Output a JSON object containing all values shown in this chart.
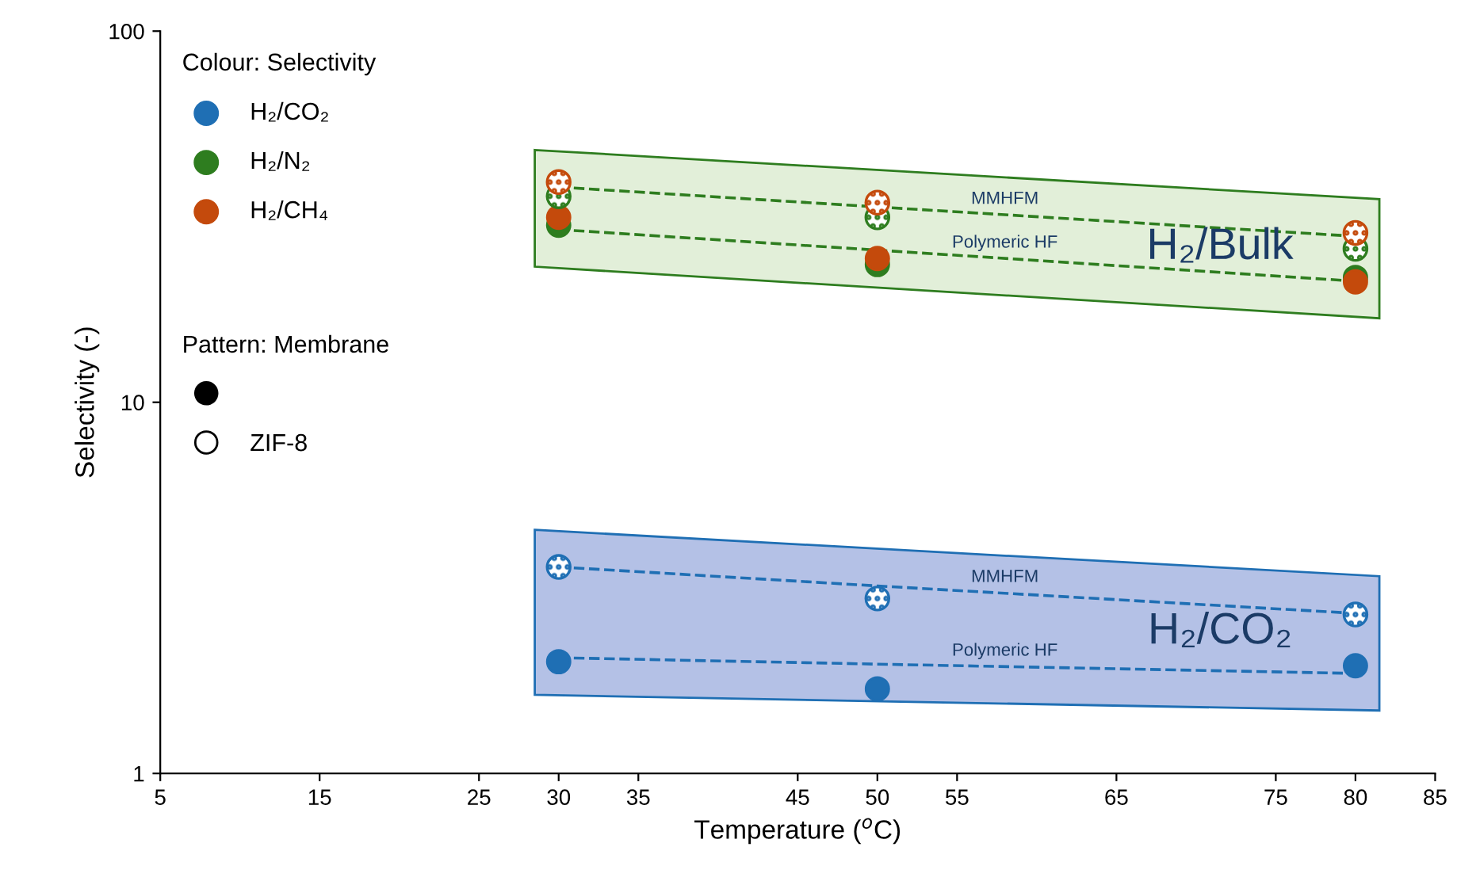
{
  "chart_data": {
    "type": "scatter",
    "xlabel": "Temperature ($^{o}$C)",
    "ylabel": "Selectivity (-)",
    "legend_title": "Colour: Selectivity",
    "legend": "top left",
    "log": "y",
    "marker": "circle",
    "xlim": [
      5,
      85
    ],
    "xticks": [
      5,
      15,
      25,
      30,
      35,
      45,
      50,
      55,
      65,
      75,
      80,
      85
    ],
    "ylim": [
      1,
      100
    ],
    "yticks": [
      1,
      10,
      100
    ],
    "grid": false,
    "x": [
      30,
      50,
      80
    ],
    "series": [
      {
        "name": "H₂/CO₂",
        "color": "#1f6fb4",
        "values": [
          2.0,
          1.69,
          1.95
        ]
      },
      {
        "name": "H₂/N₂",
        "color": "#2e7d1f",
        "values": [
          30,
          23.5,
          21.7
        ]
      },
      {
        "name": "H₂/CH₄",
        "color": "#c44a0c",
        "values": [
          31.5,
          24.4,
          21.1
        ]
      },
      {
        "color": "#1f6fb4",
        "values": [
          3.6,
          2.96,
          2.68
        ]
      },
      {
        "color": "#2e7d1f",
        "values": [
          35.9,
          31.5,
          25.9
        ]
      },
      {
        "color": "#c44a0c",
        "values": [
          39.2,
          34.5,
          28.6
        ]
      },
      {
        "type": "line",
        "marker": "none",
        "line_style": "dashed",
        "color": "#2e7d1f",
        "values": [
          38,
          33.6,
          28
        ]
      },
      {
        "type": "line",
        "marker": "none",
        "line_style": "dashed",
        "color": "#2e7d1f",
        "values": [
          29.2,
          25.7,
          21.2
        ]
      },
      {
        "type": "line",
        "marker": "none",
        "line_style": "dashed",
        "color": "#1f6fb4",
        "values": [
          3.6,
          3.2,
          2.7
        ]
      },
      {
        "type": "line",
        "marker": "none",
        "line_style": "dashed",
        "color": "#1f6fb4",
        "values": [
          2.05,
          1.97,
          1.86
        ]
      }
    ],
    "annotations": [
      "Pattern: Membrane",
      "ZIF-8",
      "MMHFM",
      "Polymeric HF",
      "H₂/Bulk",
      "MMHFM",
      "Polymeric HF",
      "H₂/CO₂"
    ]
  }
}
